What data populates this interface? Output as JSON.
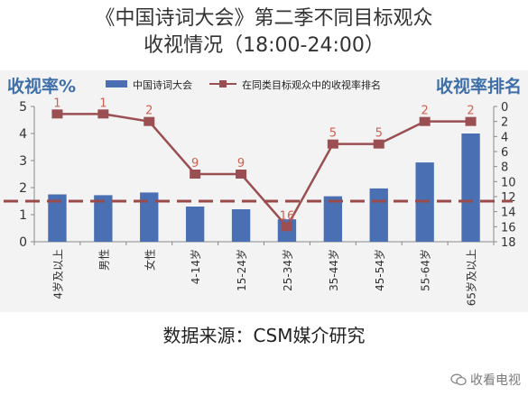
{
  "title_line1": "《中国诗词大会》第二季不同目标观众",
  "title_line2": "收视情况（18:00-24:00）",
  "source": "数据来源：CSM媒介研究",
  "watermark": "收看电视",
  "chart_data": {
    "type": "bar",
    "categories": [
      "4岁及以上",
      "男性",
      "女性",
      "4-14岁",
      "15-24岁",
      "25-34岁",
      "35-44岁",
      "45-54岁",
      "55-64岁",
      "65岁及以上"
    ],
    "left_axis_label": "收视率%",
    "right_axis_label": "收视率排名",
    "left_ylim": [
      0,
      5
    ],
    "left_ticks": [
      "0",
      "1",
      "2",
      "3",
      "4",
      "5"
    ],
    "right_ylim": [
      0,
      18
    ],
    "right_ticks": [
      "0",
      "2",
      "4",
      "6",
      "8",
      "10",
      "12",
      "14",
      "16",
      "18"
    ],
    "right_axis_inverted": true,
    "reference_line": 1.5,
    "legend_position": "top",
    "series": [
      {
        "name": "中国诗词大会",
        "type": "bar",
        "axis": "left",
        "color": "#4a70b3",
        "values": [
          1.75,
          1.72,
          1.82,
          1.3,
          1.2,
          0.83,
          1.68,
          1.97,
          2.93,
          4.0
        ]
      },
      {
        "name": "在同类目标观众中的收视率排名",
        "type": "line",
        "axis": "right",
        "color": "#9a5052",
        "values": [
          1,
          1,
          2,
          9,
          9,
          16,
          5,
          5,
          2,
          2
        ],
        "labels": [
          "1",
          "1",
          "2",
          "9",
          "9",
          "16",
          "5",
          "5",
          "2",
          "2"
        ]
      }
    ]
  }
}
